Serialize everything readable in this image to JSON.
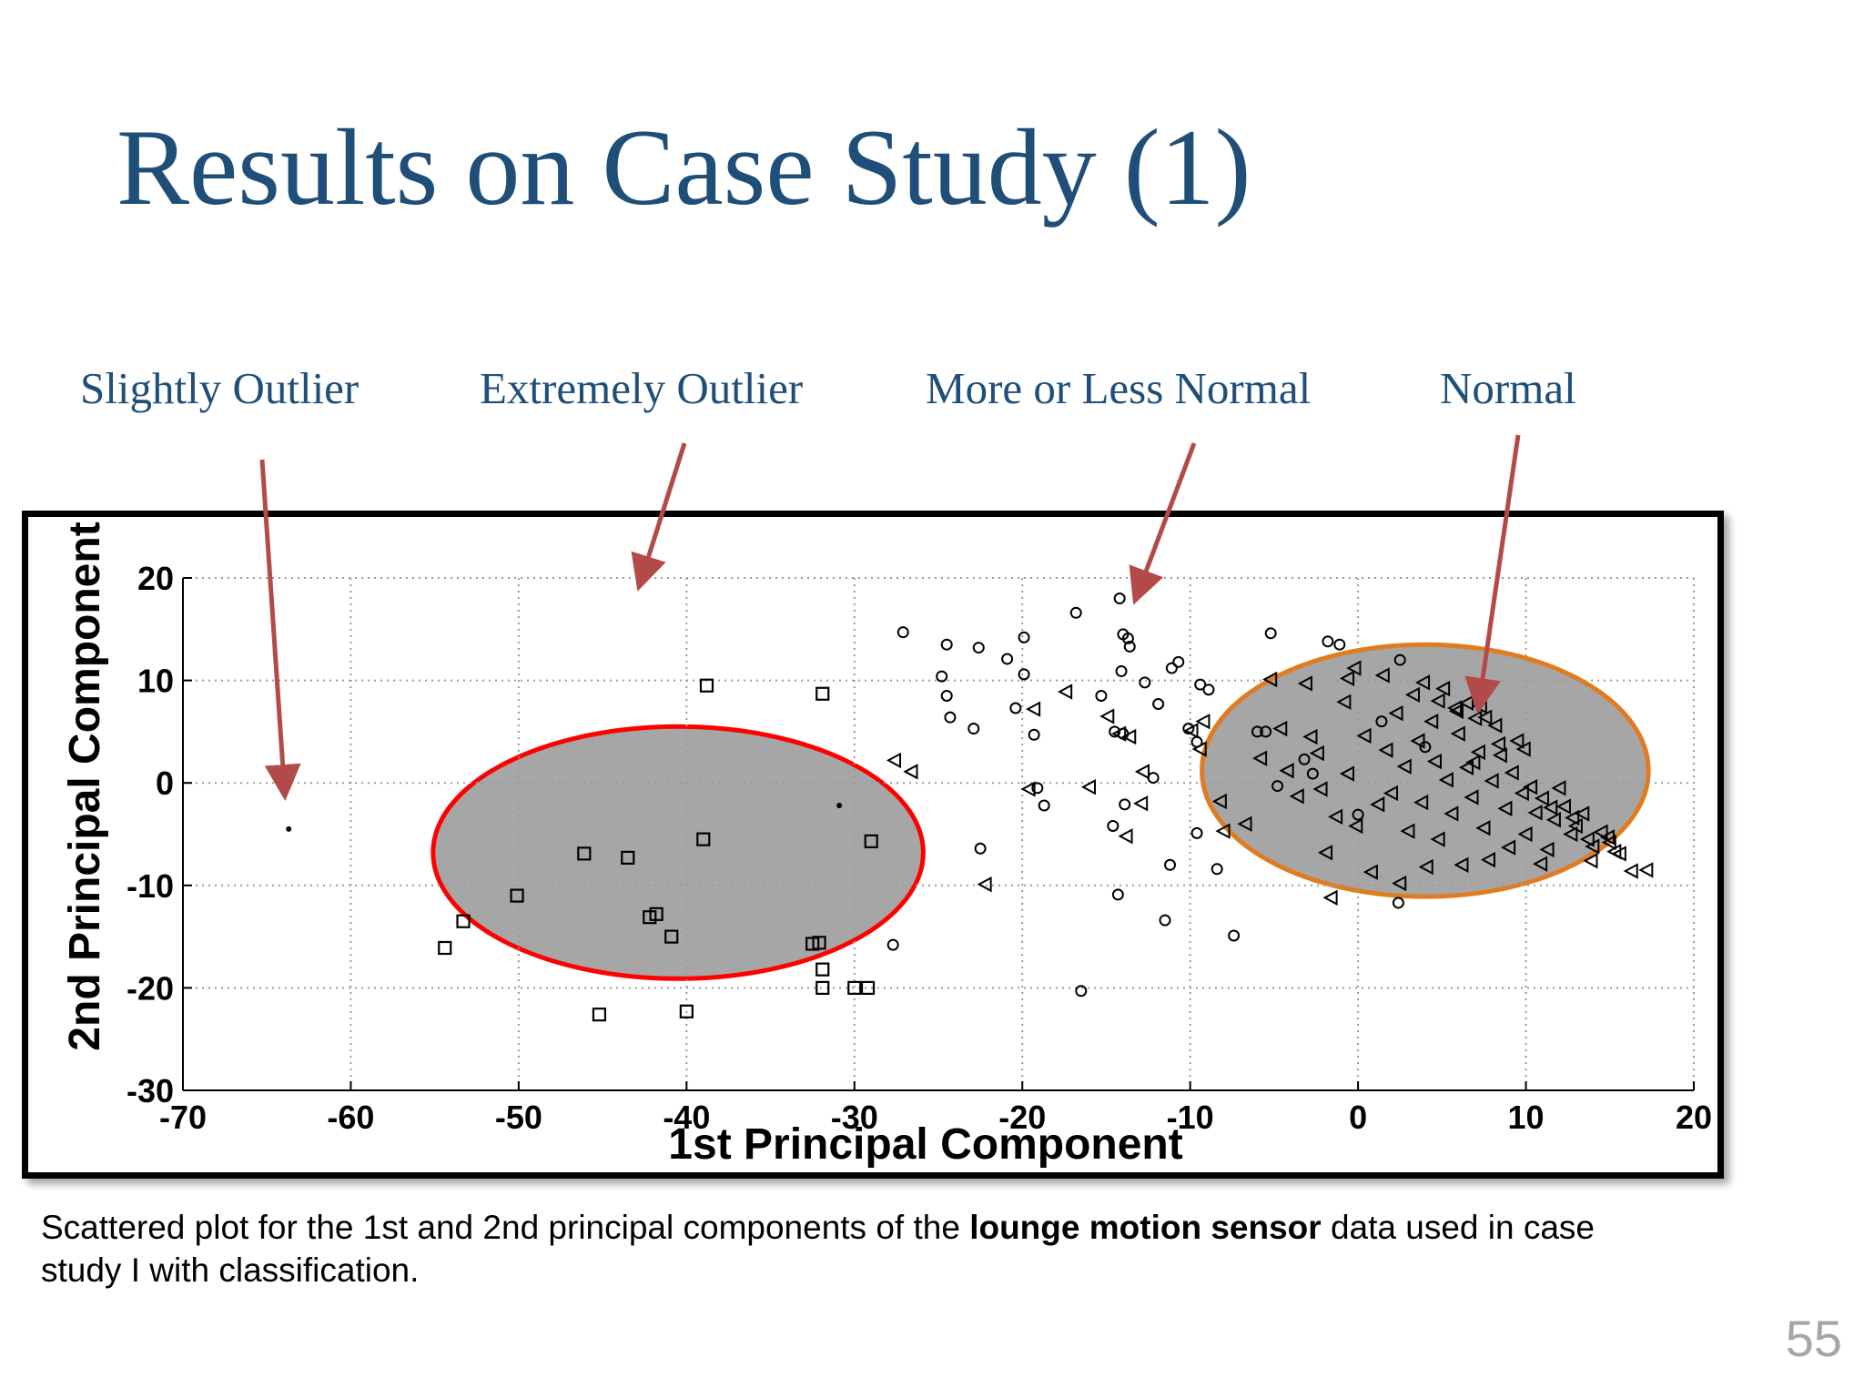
{
  "slide": {
    "title": "Results on Case Study (1)",
    "slide_number": "55",
    "caption": {
      "before": "Scattered plot for the 1st and 2nd principal components of the ",
      "bold": "lounge motion sensor",
      "after": " data used in case study I with classification."
    }
  },
  "labels": {
    "slightly_outlier": "Slightly Outlier",
    "extremely_outlier": "Extremely Outlier",
    "more_or_less_normal": "More or Less Normal",
    "normal": "Normal"
  },
  "colors": {
    "title": "#1F4E79",
    "arrow": "#B34A4A",
    "extreme_circle_stroke": "#FF0000",
    "normal_ellipse_stroke": "#E07B20",
    "region_fill": "#A6A6A6",
    "grid": "#9a9a9a"
  },
  "chart_data": {
    "type": "scatter",
    "xlabel": "1st Principal Component",
    "ylabel": "2nd Principal Component",
    "xlim": [
      -70,
      20
    ],
    "ylim": [
      -30,
      20
    ],
    "xticks": [
      -70,
      -60,
      -50,
      -40,
      -30,
      -20,
      -10,
      0,
      10,
      20
    ],
    "yticks": [
      -30,
      -20,
      -10,
      0,
      10,
      20
    ],
    "grid": true,
    "legend": "none",
    "regions": {
      "extremely_outlier_circle": {
        "cx": -40.5,
        "cy": -6.8,
        "rx": 14.6,
        "ry": 12.3
      },
      "normal_ellipse": {
        "cx": 4,
        "cy": 1.2,
        "rx": 13.3,
        "ry": 12.3
      }
    },
    "series": [
      {
        "marker": "dot",
        "points": [
          [
            -63.7,
            -4.5
          ],
          [
            -30.9,
            -2.2
          ]
        ]
      },
      {
        "marker": "square",
        "points": [
          [
            -38.8,
            9.5
          ],
          [
            -31.9,
            8.7
          ],
          [
            -39.0,
            -5.5
          ],
          [
            -29.0,
            -5.7
          ],
          [
            -46.1,
            -6.9
          ],
          [
            -43.5,
            -7.3
          ],
          [
            -50.1,
            -11.0
          ],
          [
            -42.2,
            -13.1
          ],
          [
            -41.8,
            -12.8
          ],
          [
            -53.3,
            -13.5
          ],
          [
            -54.4,
            -16.1
          ],
          [
            -40.9,
            -15.0
          ],
          [
            -32.5,
            -15.7
          ],
          [
            -32.1,
            -15.6
          ],
          [
            -31.9,
            -18.2
          ],
          [
            -31.9,
            -20.0
          ],
          [
            -30.0,
            -20.0
          ],
          [
            -29.2,
            -20.0
          ],
          [
            -45.2,
            -22.6
          ],
          [
            -40.0,
            -22.3
          ]
        ]
      },
      {
        "marker": "circle",
        "points": [
          [
            -27.1,
            14.7
          ],
          [
            -24.5,
            13.5
          ],
          [
            -22.6,
            13.2
          ],
          [
            -20.9,
            12.1
          ],
          [
            -19.9,
            14.2
          ],
          [
            -19.9,
            10.6
          ],
          [
            -16.8,
            16.6
          ],
          [
            -14.2,
            18.0
          ],
          [
            -14.0,
            14.5
          ],
          [
            -13.6,
            13.3
          ],
          [
            -13.7,
            14.1
          ],
          [
            -14.1,
            10.9
          ],
          [
            -12.7,
            9.8
          ],
          [
            -11.1,
            11.2
          ],
          [
            -10.7,
            11.8
          ],
          [
            -9.4,
            9.6
          ],
          [
            -8.9,
            9.1
          ],
          [
            -24.8,
            10.4
          ],
          [
            -24.5,
            8.5
          ],
          [
            -24.3,
            6.4
          ],
          [
            -22.9,
            5.3
          ],
          [
            -20.4,
            7.3
          ],
          [
            -19.3,
            4.7
          ],
          [
            -15.3,
            8.5
          ],
          [
            -14.5,
            5.0
          ],
          [
            -14.0,
            4.8
          ],
          [
            -11.9,
            7.7
          ],
          [
            -10.1,
            5.3
          ],
          [
            -9.6,
            4.0
          ],
          [
            -19.1,
            -0.5
          ],
          [
            -18.7,
            -2.2
          ],
          [
            -13.9,
            -2.1
          ],
          [
            -12.2,
            0.5
          ],
          [
            -14.6,
            -4.2
          ],
          [
            -9.6,
            -4.9
          ],
          [
            -8.4,
            -8.4
          ],
          [
            -11.2,
            -8.0
          ],
          [
            -14.3,
            -10.9
          ],
          [
            -22.5,
            -6.4
          ],
          [
            -11.5,
            -13.4
          ],
          [
            -7.4,
            -14.9
          ],
          [
            -16.5,
            -20.3
          ],
          [
            -27.7,
            -15.8
          ],
          [
            -6.0,
            5.0
          ],
          [
            -4.8,
            -0.3
          ],
          [
            -5.2,
            14.6
          ],
          [
            -1.8,
            13.8
          ],
          [
            -1.1,
            13.5
          ],
          [
            2.5,
            12.0
          ],
          [
            0.0,
            -3.1
          ],
          [
            -2.7,
            0.9
          ],
          [
            2.4,
            -11.7
          ],
          [
            -5.5,
            5.0
          ],
          [
            -3.2,
            2.3
          ],
          [
            1.4,
            6.0
          ],
          [
            4.0,
            3.5
          ]
        ]
      },
      {
        "marker": "triangle-left",
        "points": [
          [
            -27.6,
            2.2
          ],
          [
            -26.6,
            1.1
          ],
          [
            -22.2,
            -9.9
          ],
          [
            -19.6,
            -0.6
          ],
          [
            -19.3,
            7.2
          ],
          [
            -17.4,
            8.9
          ],
          [
            -14.9,
            6.5
          ],
          [
            -14.2,
            4.8
          ],
          [
            -13.6,
            4.5
          ],
          [
            -12.8,
            1.1
          ],
          [
            -12.9,
            -2.0
          ],
          [
            -13.8,
            -5.2
          ],
          [
            -16.0,
            -0.4
          ],
          [
            -9.9,
            5.1
          ],
          [
            -9.2,
            6.0
          ],
          [
            -9.4,
            3.3
          ],
          [
            -8.2,
            -1.8
          ],
          [
            -8.0,
            -4.7
          ],
          [
            -6.7,
            -4.0
          ],
          [
            -5.8,
            2.4
          ],
          [
            -5.2,
            10.1
          ],
          [
            -4.6,
            5.3
          ],
          [
            -4.2,
            1.2
          ],
          [
            -3.6,
            -1.3
          ],
          [
            -3.1,
            9.7
          ],
          [
            -2.8,
            4.5
          ],
          [
            -2.4,
            2.9
          ],
          [
            -2.2,
            -0.6
          ],
          [
            -1.9,
            -6.8
          ],
          [
            -1.3,
            -3.3
          ],
          [
            -0.8,
            7.9
          ],
          [
            -0.6,
            0.9
          ],
          [
            -0.2,
            11.2
          ],
          [
            -1.6,
            -11.2
          ],
          [
            -0.1,
            -4.2
          ],
          [
            0.4,
            4.6
          ],
          [
            0.8,
            -8.7
          ],
          [
            1.2,
            -2.1
          ],
          [
            1.5,
            10.5
          ],
          [
            1.7,
            3.2
          ],
          [
            2.0,
            -1.0
          ],
          [
            2.3,
            6.8
          ],
          [
            2.5,
            -9.8
          ],
          [
            2.8,
            1.6
          ],
          [
            3.0,
            -4.7
          ],
          [
            3.3,
            8.6
          ],
          [
            3.6,
            4.1
          ],
          [
            3.8,
            -1.9
          ],
          [
            4.1,
            -8.2
          ],
          [
            4.4,
            6.0
          ],
          [
            4.6,
            2.1
          ],
          [
            4.8,
            -5.5
          ],
          [
            5.1,
            9.2
          ],
          [
            5.3,
            0.3
          ],
          [
            5.6,
            -3.0
          ],
          [
            5.8,
            7.3
          ],
          [
            6.0,
            4.8
          ],
          [
            6.2,
            -8.0
          ],
          [
            6.5,
            1.5
          ],
          [
            6.8,
            -1.4
          ],
          [
            7.0,
            6.3
          ],
          [
            7.2,
            3.0
          ],
          [
            7.5,
            -4.4
          ],
          [
            7.8,
            -7.5
          ],
          [
            8.0,
            0.2
          ],
          [
            8.2,
            5.6
          ],
          [
            8.5,
            2.7
          ],
          [
            8.8,
            -2.5
          ],
          [
            9.0,
            -6.3
          ],
          [
            9.2,
            1.0
          ],
          [
            9.5,
            4.1
          ],
          [
            9.8,
            -1.0
          ],
          [
            10.0,
            -5.0
          ],
          [
            10.3,
            -0.4
          ],
          [
            10.6,
            -2.9
          ],
          [
            11.0,
            -1.5
          ],
          [
            11.3,
            -6.5
          ],
          [
            11.7,
            -3.6
          ],
          [
            12.0,
            -0.5
          ],
          [
            12.3,
            -2.3
          ],
          [
            12.7,
            -5.0
          ],
          [
            13.0,
            -4.2
          ],
          [
            13.4,
            -3.0
          ],
          [
            13.7,
            -5.5
          ],
          [
            14.0,
            -6.2
          ],
          [
            14.5,
            -4.8
          ],
          [
            15.0,
            -5.8
          ],
          [
            15.6,
            -6.9
          ],
          [
            16.3,
            -8.6
          ],
          [
            17.2,
            -8.5
          ],
          [
            6.5,
            7.8
          ],
          [
            7.3,
            7.5
          ],
          [
            5.9,
            7.0
          ],
          [
            7.6,
            6.4
          ],
          [
            8.4,
            3.8
          ],
          [
            6.9,
            2.0
          ],
          [
            9.9,
            3.3
          ],
          [
            11.5,
            -2.4
          ],
          [
            12.8,
            -3.4
          ],
          [
            14.9,
            -5.3
          ],
          [
            15.3,
            -6.7
          ],
          [
            13.9,
            -7.6
          ],
          [
            10.9,
            -7.9
          ],
          [
            -0.6,
            10.2
          ],
          [
            3.9,
            9.8
          ],
          [
            4.8,
            8.0
          ]
        ]
      }
    ]
  }
}
